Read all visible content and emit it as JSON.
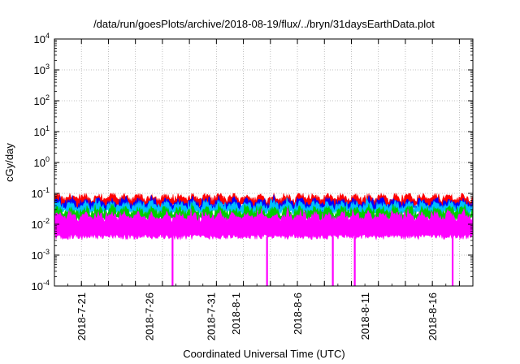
{
  "chart_data": {
    "type": "area",
    "title": "/data/run/goesPlots/archive/2018-08-19/flux/../bryn/31daysEarthData.plot",
    "xlabel": "Coordinated Universal Time (UTC)",
    "ylabel": "cGy/day",
    "yscale": "log",
    "ylim": [
      0.0001,
      10000
    ],
    "xlim": [
      "2018-07-19 00:00",
      "2018-08-19 00:00"
    ],
    "grid": true,
    "legend": "none",
    "y_ticks": [
      {
        "mantissa": "10",
        "exp": "-4",
        "value": 0.0001
      },
      {
        "mantissa": "10",
        "exp": "-3",
        "value": 0.001
      },
      {
        "mantissa": "10",
        "exp": "-2",
        "value": 0.01
      },
      {
        "mantissa": "10",
        "exp": "-1",
        "value": 0.1
      },
      {
        "mantissa": "10",
        "exp": "0",
        "value": 1
      },
      {
        "mantissa": "10",
        "exp": "1",
        "value": 10
      },
      {
        "mantissa": "10",
        "exp": "2",
        "value": 100
      },
      {
        "mantissa": "10",
        "exp": "3",
        "value": 1000
      },
      {
        "mantissa": "10",
        "exp": "4",
        "value": 10000
      }
    ],
    "x_ticks": [
      {
        "label": "2018-7-21",
        "date": "2018-07-21"
      },
      {
        "label": "2018-7-26",
        "date": "2018-07-26"
      },
      {
        "label": "2018-7-31",
        "date": "2018-07-31"
      },
      {
        "label": "2018-8-1",
        "date": "2018-08-01"
      },
      {
        "label": "2018-8-6",
        "date": "2018-08-06"
      },
      {
        "label": "2018-8-11",
        "date": "2018-08-11"
      },
      {
        "label": "2018-8-16",
        "date": "2018-08-16"
      }
    ],
    "x_gridlines_every_days": 2,
    "series": [
      {
        "color": "#ff0000",
        "typical_max": 0.08,
        "typical_min": 0.04
      },
      {
        "color": "#0000ff",
        "typical_max": 0.055,
        "typical_min": 0.03
      },
      {
        "color": "#00bfff",
        "typical_max": 0.045,
        "typical_min": 0.025
      },
      {
        "color": "#00cc00",
        "typical_max": 0.03,
        "typical_min": 0.015
      },
      {
        "color": "#ff00ff",
        "typical_max": 0.02,
        "typical_min": 0.004,
        "dropouts": [
          "2018-07-27 18:00",
          "2018-08-03 18:00",
          "2018-08-08 15:00",
          "2018-08-10 06:00",
          "2018-08-17 12:00"
        ],
        "dropout_value": 0.0001
      }
    ]
  }
}
